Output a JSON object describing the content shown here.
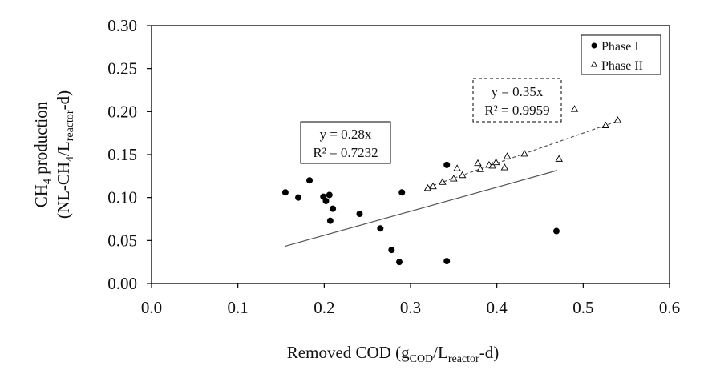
{
  "chart_data": {
    "type": "scatter",
    "xlabel": {
      "main": "Removed COD (g",
      "sub1": "COD",
      "mid": "/L",
      "sub2": "reactor",
      "end": "-d)"
    },
    "ylabel": {
      "line1_main": "CH",
      "line1_sub": "4",
      "line1_end": " production",
      "line2_main": "(NL-CH",
      "line2_sub": "4",
      "line2_mid": "/L",
      "line2_sub2": "reactor",
      "line2_end": "-d)"
    },
    "xlim": [
      0,
      0.6
    ],
    "ylim": [
      0,
      0.3
    ],
    "xticks": [
      "0.0",
      "0.1",
      "0.2",
      "0.3",
      "0.4",
      "0.5",
      "0.6"
    ],
    "xtick_values": [
      0,
      0.1,
      0.2,
      0.3,
      0.4,
      0.5,
      0.6
    ],
    "yticks": [
      "0.00",
      "0.05",
      "0.10",
      "0.15",
      "0.20",
      "0.25",
      "0.30"
    ],
    "ytick_values": [
      0,
      0.05,
      0.1,
      0.15,
      0.2,
      0.25,
      0.3
    ],
    "legend_position": "top-right",
    "series": [
      {
        "name": "Phase I",
        "marker": "filled-circle",
        "color": "#000000",
        "points": [
          [
            0.155,
            0.106
          ],
          [
            0.17,
            0.1
          ],
          [
            0.183,
            0.12
          ],
          [
            0.199,
            0.101
          ],
          [
            0.202,
            0.096
          ],
          [
            0.206,
            0.103
          ],
          [
            0.21,
            0.087
          ],
          [
            0.207,
            0.073
          ],
          [
            0.241,
            0.081
          ],
          [
            0.265,
            0.064
          ],
          [
            0.278,
            0.039
          ],
          [
            0.287,
            0.025
          ],
          [
            0.29,
            0.106
          ],
          [
            0.342,
            0.138
          ],
          [
            0.342,
            0.026
          ],
          [
            0.469,
            0.061
          ]
        ],
        "trendline": {
          "slope": 0.28,
          "x_range": [
            0.155,
            0.47
          ],
          "style": "solid",
          "color": "#555555",
          "equation": "y = 0.28x",
          "r2": "R² = 0.7232"
        }
      },
      {
        "name": "Phase II",
        "marker": "open-triangle",
        "color": "#000000",
        "points": [
          [
            0.32,
            0.111
          ],
          [
            0.326,
            0.113
          ],
          [
            0.337,
            0.118
          ],
          [
            0.35,
            0.122
          ],
          [
            0.354,
            0.134
          ],
          [
            0.36,
            0.126
          ],
          [
            0.378,
            0.14
          ],
          [
            0.381,
            0.133
          ],
          [
            0.391,
            0.138
          ],
          [
            0.395,
            0.137
          ],
          [
            0.399,
            0.141
          ],
          [
            0.409,
            0.135
          ],
          [
            0.412,
            0.148
          ],
          [
            0.432,
            0.151
          ],
          [
            0.472,
            0.145
          ],
          [
            0.49,
            0.203
          ],
          [
            0.526,
            0.184
          ],
          [
            0.54,
            0.19
          ]
        ],
        "trendline": {
          "slope": 0.35,
          "x_range": [
            0.32,
            0.54
          ],
          "style": "dashed",
          "color": "#555555",
          "equation": "y = 0.35x",
          "r2": "R² = 0.9959"
        }
      }
    ]
  }
}
